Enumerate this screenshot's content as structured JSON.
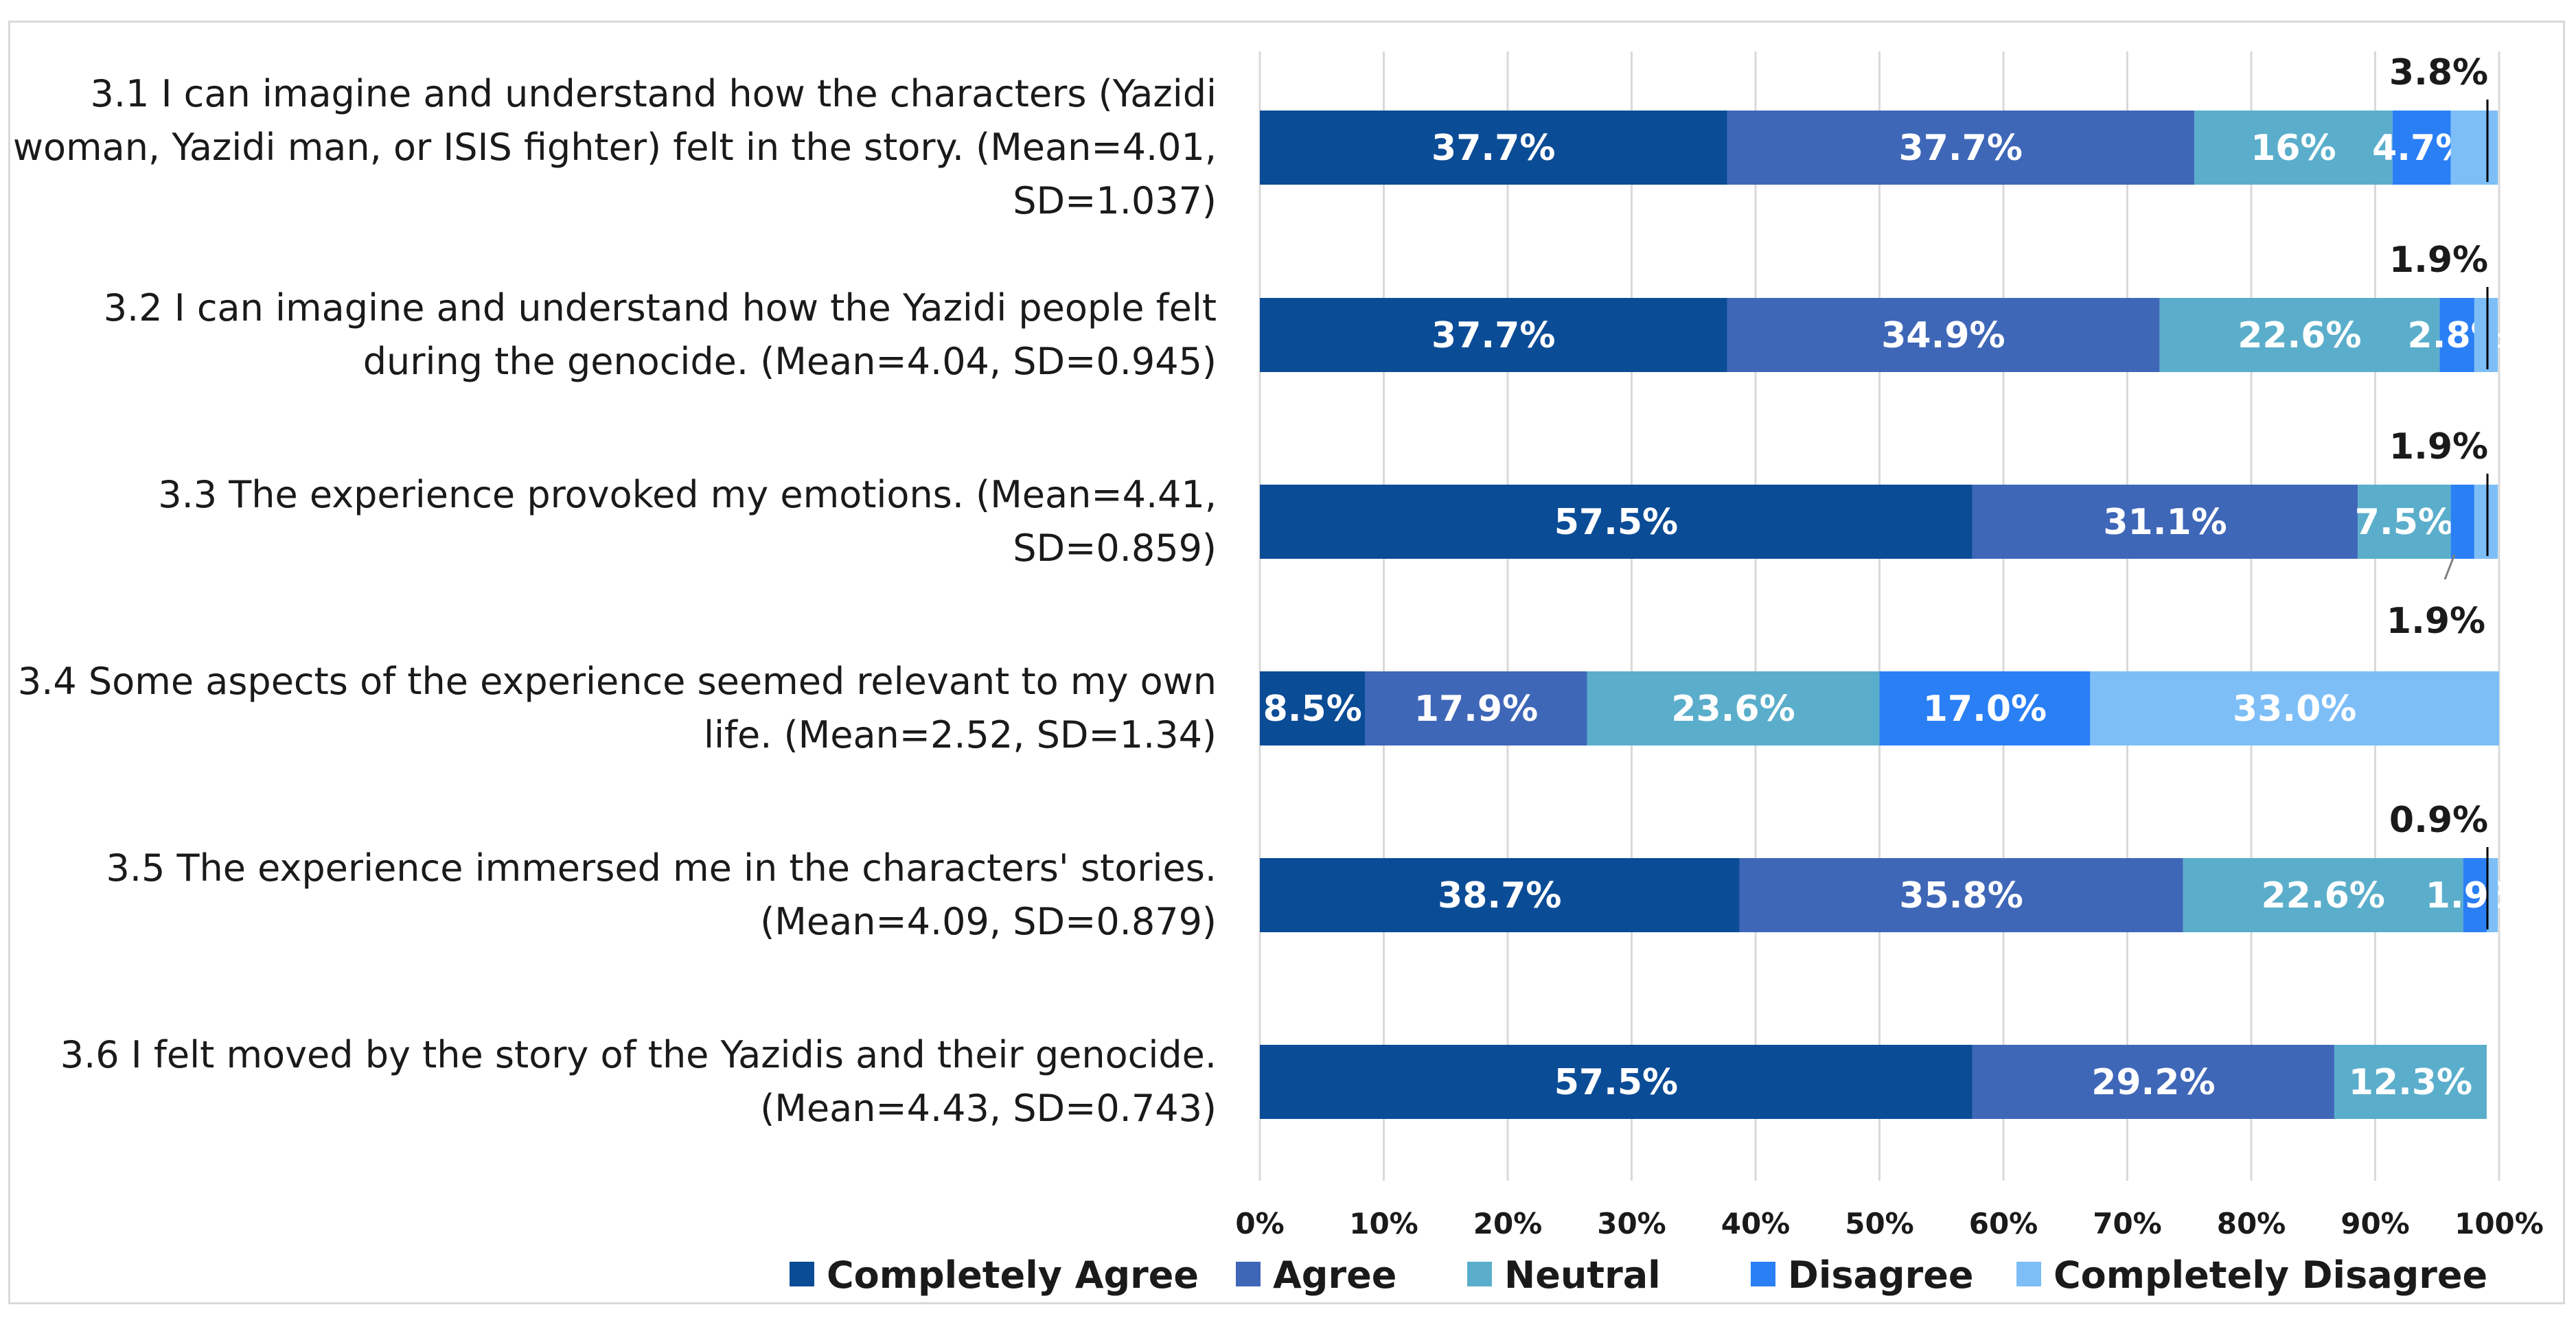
{
  "chart_data": {
    "type": "bar",
    "orientation": "horizontal",
    "stacked": true,
    "title": "",
    "xlabel": "",
    "ylabel": "",
    "xlim": [
      0,
      100
    ],
    "ticks": [
      "0%",
      "10%",
      "20%",
      "30%",
      "40%",
      "50%",
      "60%",
      "70%",
      "80%",
      "90%",
      "100%"
    ],
    "grid": true,
    "legend_position": "bottom",
    "categories": [
      [
        "3.1 I can imagine and understand how the characters (Yazidi",
        "woman, Yazidi man, or ISIS fighter) felt in the story. (Mean=4.01,",
        "SD=1.037)"
      ],
      [
        "3.2 I can imagine and understand how the Yazidi people felt",
        "during the genocide. (Mean=4.04, SD=0.945)"
      ],
      [
        "3.3 The experience provoked my emotions. (Mean=4.41,",
        "SD=0.859)"
      ],
      [
        "3.4 Some aspects of the experience seemed relevant to my own",
        "life. (Mean=2.52, SD=1.34)"
      ],
      [
        "3.5 The experience immersed me in the characters' stories.",
        "(Mean=4.09, SD=0.879)"
      ],
      [
        "3.6 I felt moved by the story of the Yazidis and their genocide.",
        "(Mean=4.43, SD=0.743)"
      ]
    ],
    "series": [
      {
        "name": "Completely Agree",
        "color": "#0b4c96",
        "values": [
          37.7,
          37.7,
          57.5,
          8.5,
          38.7,
          57.5
        ],
        "labels": [
          "37.7%",
          "37.7%",
          "57.5%",
          "8.5%",
          "38.7%",
          "57.5%"
        ]
      },
      {
        "name": "Agree",
        "color": "#3f67b8",
        "values": [
          37.7,
          34.9,
          31.1,
          17.9,
          35.8,
          29.2
        ],
        "labels": [
          "37.7%",
          "34.9%",
          "31.1%",
          "17.9%",
          "35.8%",
          "29.2%"
        ]
      },
      {
        "name": "Neutral",
        "color": "#5aaecb",
        "values": [
          16,
          22.6,
          7.5,
          23.6,
          22.6,
          12.3
        ],
        "labels": [
          "16%",
          "22.6%",
          "7.5%",
          "23.6%",
          "22.6%",
          "12.3%"
        ]
      },
      {
        "name": "Disagree",
        "color": "#2a7ff5",
        "values": [
          4.7,
          2.8,
          1.9,
          17.0,
          1.9,
          0
        ],
        "labels": [
          "4.7%",
          "2.8%",
          "",
          "17.0%",
          "1.9%",
          ""
        ]
      },
      {
        "name": "Completely Disagree",
        "color": "#7dbef7",
        "values": [
          3.8,
          1.9,
          1.9,
          33.0,
          0.9,
          0
        ],
        "labels": [
          "",
          "",
          "",
          "33.0%",
          "",
          ""
        ]
      }
    ],
    "callouts": [
      {
        "row": 0,
        "text": "3.8%",
        "position": "above"
      },
      {
        "row": 1,
        "text": "1.9%",
        "position": "above"
      },
      {
        "row": 2,
        "text": "1.9%",
        "position": "above"
      },
      {
        "row": 2,
        "text": "1.9%",
        "position": "below"
      },
      {
        "row": 4,
        "text": "0.9%",
        "position": "above"
      }
    ]
  }
}
